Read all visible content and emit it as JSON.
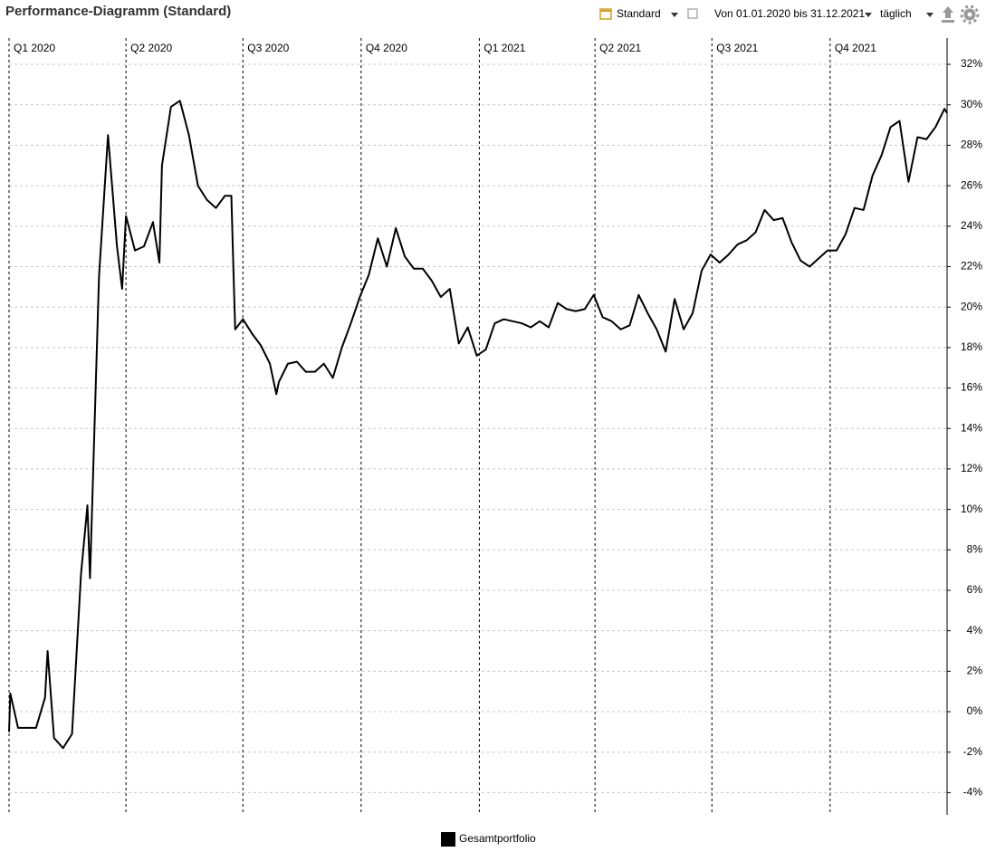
{
  "header": {
    "title": "Performance-Diagramm (Standard)"
  },
  "toolbar": {
    "view": "Standard",
    "period": "Von 01.01.2020 bis 31.12.2021",
    "interval": "täglich"
  },
  "chart_data": {
    "type": "line",
    "x": [
      "2020-01-01",
      "2020-01-02",
      "2020-01-08",
      "2020-01-15",
      "2020-01-22",
      "2020-01-29",
      "2020-01-31",
      "2020-02-05",
      "2020-02-12",
      "2020-02-19",
      "2020-02-26",
      "2020-03-02",
      "2020-03-04",
      "2020-03-11",
      "2020-03-18",
      "2020-03-25",
      "2020-03-29",
      "2020-04-01",
      "2020-04-08",
      "2020-04-15",
      "2020-04-22",
      "2020-04-27",
      "2020-04-29",
      "2020-05-06",
      "2020-05-13",
      "2020-05-20",
      "2020-05-27",
      "2020-06-03",
      "2020-06-10",
      "2020-06-17",
      "2020-06-22",
      "2020-06-24",
      "2020-06-25",
      "2020-07-01",
      "2020-07-08",
      "2020-07-15",
      "2020-07-22",
      "2020-07-27",
      "2020-07-29",
      "2020-08-05",
      "2020-08-12",
      "2020-08-19",
      "2020-08-26",
      "2020-09-02",
      "2020-09-09",
      "2020-09-16",
      "2020-09-23",
      "2020-09-30",
      "2020-10-07",
      "2020-10-14",
      "2020-10-21",
      "2020-10-28",
      "2020-11-04",
      "2020-11-11",
      "2020-11-18",
      "2020-11-25",
      "2020-12-02",
      "2020-12-09",
      "2020-12-16",
      "2020-12-23",
      "2020-12-30",
      "2021-01-06",
      "2021-01-13",
      "2021-01-20",
      "2021-01-27",
      "2021-02-03",
      "2021-02-10",
      "2021-02-17",
      "2021-02-24",
      "2021-03-03",
      "2021-03-10",
      "2021-03-17",
      "2021-03-24",
      "2021-03-31",
      "2021-04-07",
      "2021-04-14",
      "2021-04-21",
      "2021-04-28",
      "2021-05-05",
      "2021-05-12",
      "2021-05-19",
      "2021-05-26",
      "2021-06-02",
      "2021-06-09",
      "2021-06-16",
      "2021-06-23",
      "2021-06-30",
      "2021-07-07",
      "2021-07-14",
      "2021-07-21",
      "2021-07-28",
      "2021-08-04",
      "2021-08-11",
      "2021-08-18",
      "2021-08-25",
      "2021-09-01",
      "2021-09-08",
      "2021-09-15",
      "2021-09-22",
      "2021-09-29",
      "2021-10-06",
      "2021-10-13",
      "2021-10-20",
      "2021-10-27",
      "2021-11-03",
      "2021-11-10",
      "2021-11-17",
      "2021-11-24",
      "2021-12-01",
      "2021-12-08",
      "2021-12-15",
      "2021-12-22",
      "2021-12-29",
      "2021-12-31"
    ],
    "series": [
      {
        "name": "Gesamtportfolio",
        "color": "#000000",
        "values": [
          -1.0,
          0.9,
          -0.8,
          -0.8,
          -0.8,
          0.7,
          3.0,
          -1.3,
          -1.8,
          -1.1,
          6.8,
          10.2,
          6.6,
          21.5,
          28.5,
          23.0,
          20.9,
          24.5,
          22.8,
          23.0,
          24.2,
          22.2,
          27.0,
          29.9,
          30.2,
          28.5,
          26.0,
          25.3,
          24.9,
          25.5,
          25.5,
          21.0,
          18.9,
          19.4,
          18.7,
          18.1,
          17.2,
          15.7,
          16.3,
          17.2,
          17.3,
          16.8,
          16.8,
          17.2,
          16.5,
          18.0,
          19.2,
          20.5,
          21.6,
          23.4,
          22.0,
          23.9,
          22.5,
          21.9,
          21.9,
          21.3,
          20.5,
          20.9,
          18.2,
          19.0,
          17.6,
          17.9,
          19.2,
          19.4,
          19.3,
          19.2,
          19.0,
          19.3,
          19.0,
          20.2,
          19.9,
          19.8,
          19.9,
          20.6,
          19.5,
          19.3,
          18.9,
          19.1,
          20.6,
          19.7,
          18.9,
          17.8,
          20.4,
          18.9,
          19.7,
          21.8,
          22.6,
          22.2,
          22.6,
          23.1,
          23.3,
          23.7,
          24.8,
          24.3,
          24.4,
          23.2,
          22.3,
          22.0,
          22.4,
          22.8,
          22.8,
          23.6,
          24.9,
          24.8,
          26.5,
          27.5,
          28.9,
          29.2,
          26.2,
          28.4,
          28.3,
          28.9,
          29.8,
          29.6
        ]
      }
    ],
    "xlim": [
      "2020-01-01",
      "2021-12-31"
    ],
    "xticks": [
      {
        "value": "2020-01-01",
        "label": "Q1 2020"
      },
      {
        "value": "2020-04-01",
        "label": "Q2 2020"
      },
      {
        "value": "2020-07-01",
        "label": "Q3 2020"
      },
      {
        "value": "2020-10-01",
        "label": "Q4 2020"
      },
      {
        "value": "2021-01-01",
        "label": "Q1 2021"
      },
      {
        "value": "2021-04-01",
        "label": "Q2 2021"
      },
      {
        "value": "2021-07-01",
        "label": "Q3 2021"
      },
      {
        "value": "2021-10-01",
        "label": "Q4 2021"
      }
    ],
    "ylim": [
      -5.1,
      33.3
    ],
    "yticks": [
      {
        "value": -4,
        "label": "-4%"
      },
      {
        "value": -2,
        "label": "-2%"
      },
      {
        "value": 0,
        "label": "0%"
      },
      {
        "value": 2,
        "label": "2%"
      },
      {
        "value": 4,
        "label": "4%"
      },
      {
        "value": 6,
        "label": "6%"
      },
      {
        "value": 8,
        "label": "8%"
      },
      {
        "value": 10,
        "label": "10%"
      },
      {
        "value": 12,
        "label": "12%"
      },
      {
        "value": 14,
        "label": "14%"
      },
      {
        "value": 16,
        "label": "16%"
      },
      {
        "value": 18,
        "label": "18%"
      },
      {
        "value": 20,
        "label": "20%"
      },
      {
        "value": 22,
        "label": "22%"
      },
      {
        "value": 24,
        "label": "24%"
      },
      {
        "value": 26,
        "label": "26%"
      },
      {
        "value": 28,
        "label": "28%"
      },
      {
        "value": 30,
        "label": "30%"
      },
      {
        "value": 32,
        "label": "32%"
      }
    ],
    "grid": true,
    "legend": "bottom"
  }
}
